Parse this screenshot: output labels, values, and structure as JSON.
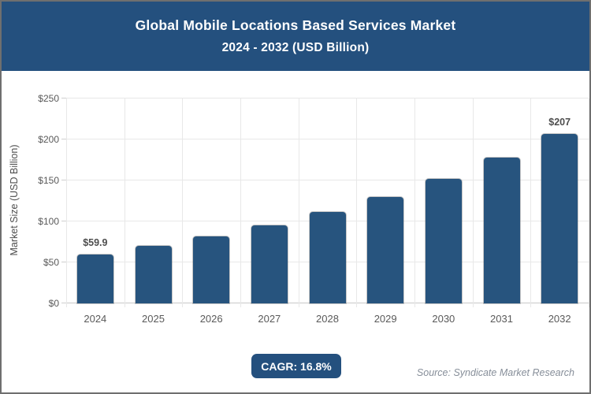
{
  "header": {
    "title": "Global Mobile Locations Based Services Market",
    "subtitle": "2024 - 2032 (USD Billion)",
    "bg_color": "#24507E",
    "text_color": "#ffffff"
  },
  "chart_data": {
    "type": "bar",
    "title": "Global Mobile Locations Based Services Market 2024 - 2032 (USD Billion)",
    "categories": [
      "2024",
      "2025",
      "2026",
      "2027",
      "2028",
      "2029",
      "2030",
      "2031",
      "2032"
    ],
    "values": [
      59.9,
      70.0,
      81.7,
      95.4,
      111.5,
      130.2,
      152.1,
      177.6,
      207
    ],
    "bar_labels": {
      "2024": "$59.9",
      "2032": "$207"
    },
    "xlabel": "",
    "ylabel": "Market Size (USD Billion)",
    "ylim": [
      0,
      250
    ],
    "ytick_values": [
      0,
      50,
      100,
      150,
      200,
      250
    ],
    "ytick_labels": [
      "$0",
      "$50",
      "$100",
      "$150",
      "$200",
      "$250"
    ],
    "grid": true,
    "legend": false,
    "bar_color": "#27547E"
  },
  "footer": {
    "cagr_label": "CAGR: 16.8%",
    "badge_bg": "#24507E",
    "source": "Source: Syndicate Market Research"
  }
}
